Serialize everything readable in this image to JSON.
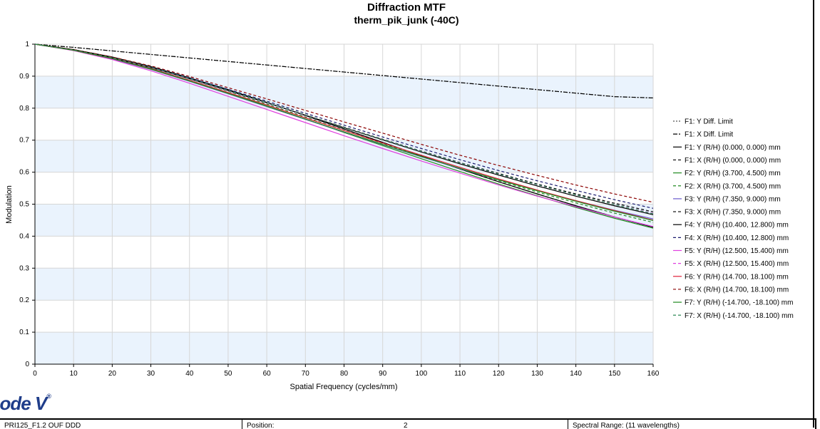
{
  "chart_data": {
    "type": "line",
    "title": "Diffraction MTF",
    "subtitle": "therm_pik_junk (-40C)",
    "xlabel": "Spatial Frequency (cycles/mm)",
    "ylabel": "Modulation",
    "xlim": [
      0,
      160
    ],
    "ylim": [
      0,
      1
    ],
    "xticks": [
      0,
      10,
      20,
      30,
      40,
      50,
      60,
      70,
      80,
      90,
      100,
      110,
      120,
      130,
      140,
      150,
      160
    ],
    "yticks": [
      0,
      0.1,
      0.2,
      0.3,
      0.4,
      0.5,
      0.6,
      0.7,
      0.8,
      0.9,
      1
    ],
    "ytick_labels": [
      "0",
      "0.1",
      "0.2",
      "0.3",
      "0.4",
      "0.5",
      "0.6",
      "0.7",
      "0.8",
      "0.9",
      "1"
    ],
    "grid": true,
    "background_bands": "alternating light blue",
    "legend_position": "right",
    "x": [
      0,
      10,
      20,
      30,
      40,
      50,
      60,
      70,
      80,
      90,
      100,
      110,
      120,
      130,
      140,
      150,
      160
    ],
    "series": [
      {
        "name": "F1: Y Diff. Limit",
        "color": "#555555",
        "dash": "dotted",
        "values": [
          1,
          0.99,
          0.979,
          0.968,
          0.957,
          0.946,
          0.935,
          0.924,
          0.913,
          0.902,
          0.891,
          0.88,
          0.869,
          0.858,
          0.847,
          0.836,
          0.832
        ]
      },
      {
        "name": "F1: X Diff. Limit",
        "color": "#000000",
        "dash": "dashdot",
        "values": [
          1,
          0.99,
          0.979,
          0.968,
          0.957,
          0.946,
          0.935,
          0.924,
          0.913,
          0.902,
          0.891,
          0.88,
          0.869,
          0.858,
          0.847,
          0.836,
          0.832
        ]
      },
      {
        "name": "F1: Y (R/H) (0.000, 0.000) mm",
        "color": "#000000",
        "dash": "solid",
        "values": [
          1,
          0.983,
          0.96,
          0.93,
          0.895,
          0.858,
          0.818,
          0.777,
          0.735,
          0.693,
          0.651,
          0.61,
          0.57,
          0.532,
          0.495,
          0.46,
          0.428
        ]
      },
      {
        "name": "F1: X (R/H) (0.000, 0.000) mm",
        "color": "#000000",
        "dash": "dashed",
        "values": [
          1,
          0.983,
          0.96,
          0.93,
          0.895,
          0.858,
          0.818,
          0.777,
          0.735,
          0.693,
          0.651,
          0.61,
          0.57,
          0.532,
          0.495,
          0.46,
          0.428
        ]
      },
      {
        "name": "F2: Y (R/H) (3.700, 4.500) mm",
        "color": "#228B22",
        "dash": "solid",
        "values": [
          1,
          0.982,
          0.956,
          0.924,
          0.887,
          0.848,
          0.807,
          0.766,
          0.724,
          0.683,
          0.642,
          0.602,
          0.563,
          0.526,
          0.49,
          0.456,
          0.425
        ]
      },
      {
        "name": "F2: X (R/H) (3.700, 4.500) mm",
        "color": "#228B22",
        "dash": "dashed",
        "values": [
          1,
          0.982,
          0.958,
          0.927,
          0.891,
          0.853,
          0.813,
          0.772,
          0.731,
          0.69,
          0.65,
          0.611,
          0.574,
          0.538,
          0.504,
          0.472,
          0.443
        ]
      },
      {
        "name": "F3: Y (R/H) (7.350, 9.000) mm",
        "color": "#6a5acd",
        "dash": "solid",
        "values": [
          1,
          0.981,
          0.954,
          0.921,
          0.884,
          0.845,
          0.805,
          0.765,
          0.725,
          0.686,
          0.648,
          0.611,
          0.576,
          0.543,
          0.511,
          0.481,
          0.454
        ]
      },
      {
        "name": "F3: X (R/H) (7.350, 9.000) mm",
        "color": "#000000",
        "dash": "dashed",
        "values": [
          1,
          0.982,
          0.958,
          0.928,
          0.893,
          0.856,
          0.818,
          0.779,
          0.741,
          0.703,
          0.666,
          0.63,
          0.596,
          0.563,
          0.532,
          0.503,
          0.476
        ]
      },
      {
        "name": "F4: Y (R/H) (10.400, 12.800) mm",
        "color": "#000000",
        "dash": "solid",
        "values": [
          1,
          0.982,
          0.957,
          0.927,
          0.892,
          0.855,
          0.817,
          0.778,
          0.739,
          0.701,
          0.663,
          0.626,
          0.591,
          0.557,
          0.525,
          0.495,
          0.467
        ]
      },
      {
        "name": "F4: X (R/H) (10.400, 12.800) mm",
        "color": "#1a1a6e",
        "dash": "dashed",
        "values": [
          1,
          0.982,
          0.958,
          0.929,
          0.895,
          0.859,
          0.822,
          0.784,
          0.747,
          0.71,
          0.674,
          0.639,
          0.605,
          0.573,
          0.543,
          0.514,
          0.487
        ]
      },
      {
        "name": "F5: Y (R/H) (12.500, 15.400) mm",
        "color": "#e040e0",
        "dash": "solid",
        "values": [
          1,
          0.98,
          0.952,
          0.917,
          0.878,
          0.837,
          0.796,
          0.755,
          0.714,
          0.674,
          0.635,
          0.597,
          0.56,
          0.525,
          0.492,
          0.46,
          0.43
        ]
      },
      {
        "name": "F5: X (R/H) (12.500, 15.400) mm",
        "color": "#e040e0",
        "dash": "dashed",
        "values": [
          1,
          0.982,
          0.957,
          0.927,
          0.892,
          0.855,
          0.817,
          0.778,
          0.74,
          0.702,
          0.665,
          0.629,
          0.594,
          0.561,
          0.529,
          0.499,
          0.471
        ]
      },
      {
        "name": "F6: Y (R/H) (14.700, 18.100) mm",
        "color": "#e0203a",
        "dash": "solid",
        "values": [
          1,
          0.981,
          0.955,
          0.923,
          0.887,
          0.849,
          0.81,
          0.77,
          0.73,
          0.691,
          0.653,
          0.615,
          0.579,
          0.544,
          0.511,
          0.48,
          0.45
        ]
      },
      {
        "name": "F6: X (R/H) (14.700, 18.100) mm",
        "color": "#8b0000",
        "dash": "dashed",
        "values": [
          1,
          0.983,
          0.96,
          0.932,
          0.899,
          0.864,
          0.829,
          0.793,
          0.757,
          0.722,
          0.687,
          0.653,
          0.621,
          0.59,
          0.56,
          0.532,
          0.506
        ]
      },
      {
        "name": "F7: Y (R/H) (-14.700, -18.100) mm",
        "color": "#228B22",
        "dash": "solid",
        "values": [
          1,
          0.981,
          0.955,
          0.922,
          0.885,
          0.846,
          0.806,
          0.766,
          0.726,
          0.687,
          0.649,
          0.612,
          0.576,
          0.542,
          0.509,
          0.478,
          0.449
        ]
      },
      {
        "name": "F7: X (R/H) (-14.700, -18.100) mm",
        "color": "#2e8b57",
        "dash": "dashed",
        "values": [
          1,
          0.982,
          0.958,
          0.928,
          0.893,
          0.856,
          0.818,
          0.779,
          0.74,
          0.702,
          0.665,
          0.629,
          0.594,
          0.561,
          0.529,
          0.499,
          0.47
        ]
      }
    ]
  },
  "logo": {
    "text": "code V",
    "mark": "®"
  },
  "footer": {
    "cell1": "PRI125_F1.2 OUF DDD",
    "cell2_label": "Position:",
    "cell2_value": "2",
    "cell3": "Spectral Range: (11 wavelengths)"
  }
}
